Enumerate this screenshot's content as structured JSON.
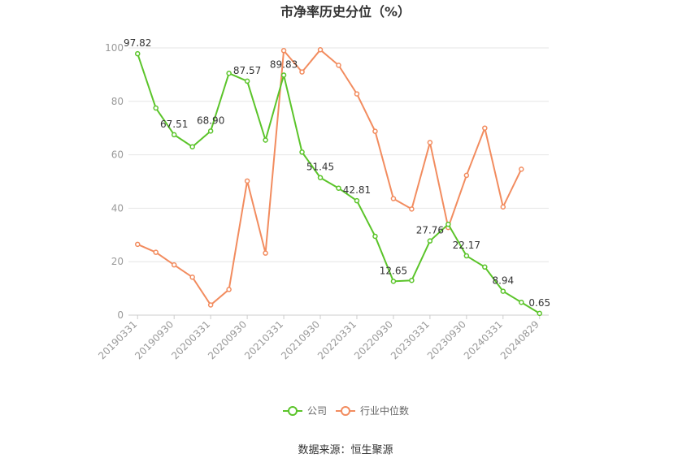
{
  "chart_data": {
    "type": "line",
    "title": "市净率历史分位（%）",
    "ylim": [
      0,
      100
    ],
    "y_ticks": [
      "0",
      "20",
      "40",
      "60",
      "80",
      "100"
    ],
    "x": [
      "20190331",
      "20190630",
      "20190930",
      "20191231",
      "20200331",
      "20200630",
      "20200930",
      "20201231",
      "20210331",
      "20210630",
      "20210930",
      "20211231",
      "20220331",
      "20220630",
      "20220930",
      "20221231",
      "20230331",
      "20230630",
      "20230930",
      "20231231",
      "20240331",
      "20240630",
      "20240829"
    ],
    "x_tick_labels": [
      "20190331",
      "20190930",
      "20200331",
      "20200930",
      "20210331",
      "20210930",
      "20220331",
      "20220930",
      "20230331",
      "20230930",
      "20240331",
      "20240829"
    ],
    "series": [
      {
        "name": "公司",
        "color": "#5bc42a",
        "values": [
          97.82,
          77.5,
          67.51,
          63.0,
          68.9,
          90.5,
          87.57,
          65.5,
          89.83,
          61.0,
          51.45,
          47.5,
          42.81,
          29.5,
          12.65,
          13.0,
          27.76,
          34.0,
          22.17,
          18.0,
          8.94,
          4.8,
          0.65
        ],
        "labels": {
          "0": "97.82",
          "2": "67.51",
          "4": "68.90",
          "6": "87.57",
          "8": "89.83",
          "10": "51.45",
          "12": "42.81",
          "14": "12.65",
          "16": "27.76",
          "18": "22.17",
          "20": "8.94",
          "22": "0.65"
        }
      },
      {
        "name": "行业中位数",
        "color": "#f28c5f",
        "values": [
          26.5,
          23.5,
          18.8,
          14.2,
          3.8,
          9.6,
          50.2,
          23.2,
          99.0,
          91.0,
          99.3,
          93.5,
          82.8,
          68.8,
          43.6,
          39.7,
          64.6,
          32.8,
          52.3,
          70.0,
          40.5,
          54.6,
          null
        ]
      }
    ],
    "grid": true,
    "legend_position": "bottom"
  },
  "source": "数据来源：恒生聚源"
}
